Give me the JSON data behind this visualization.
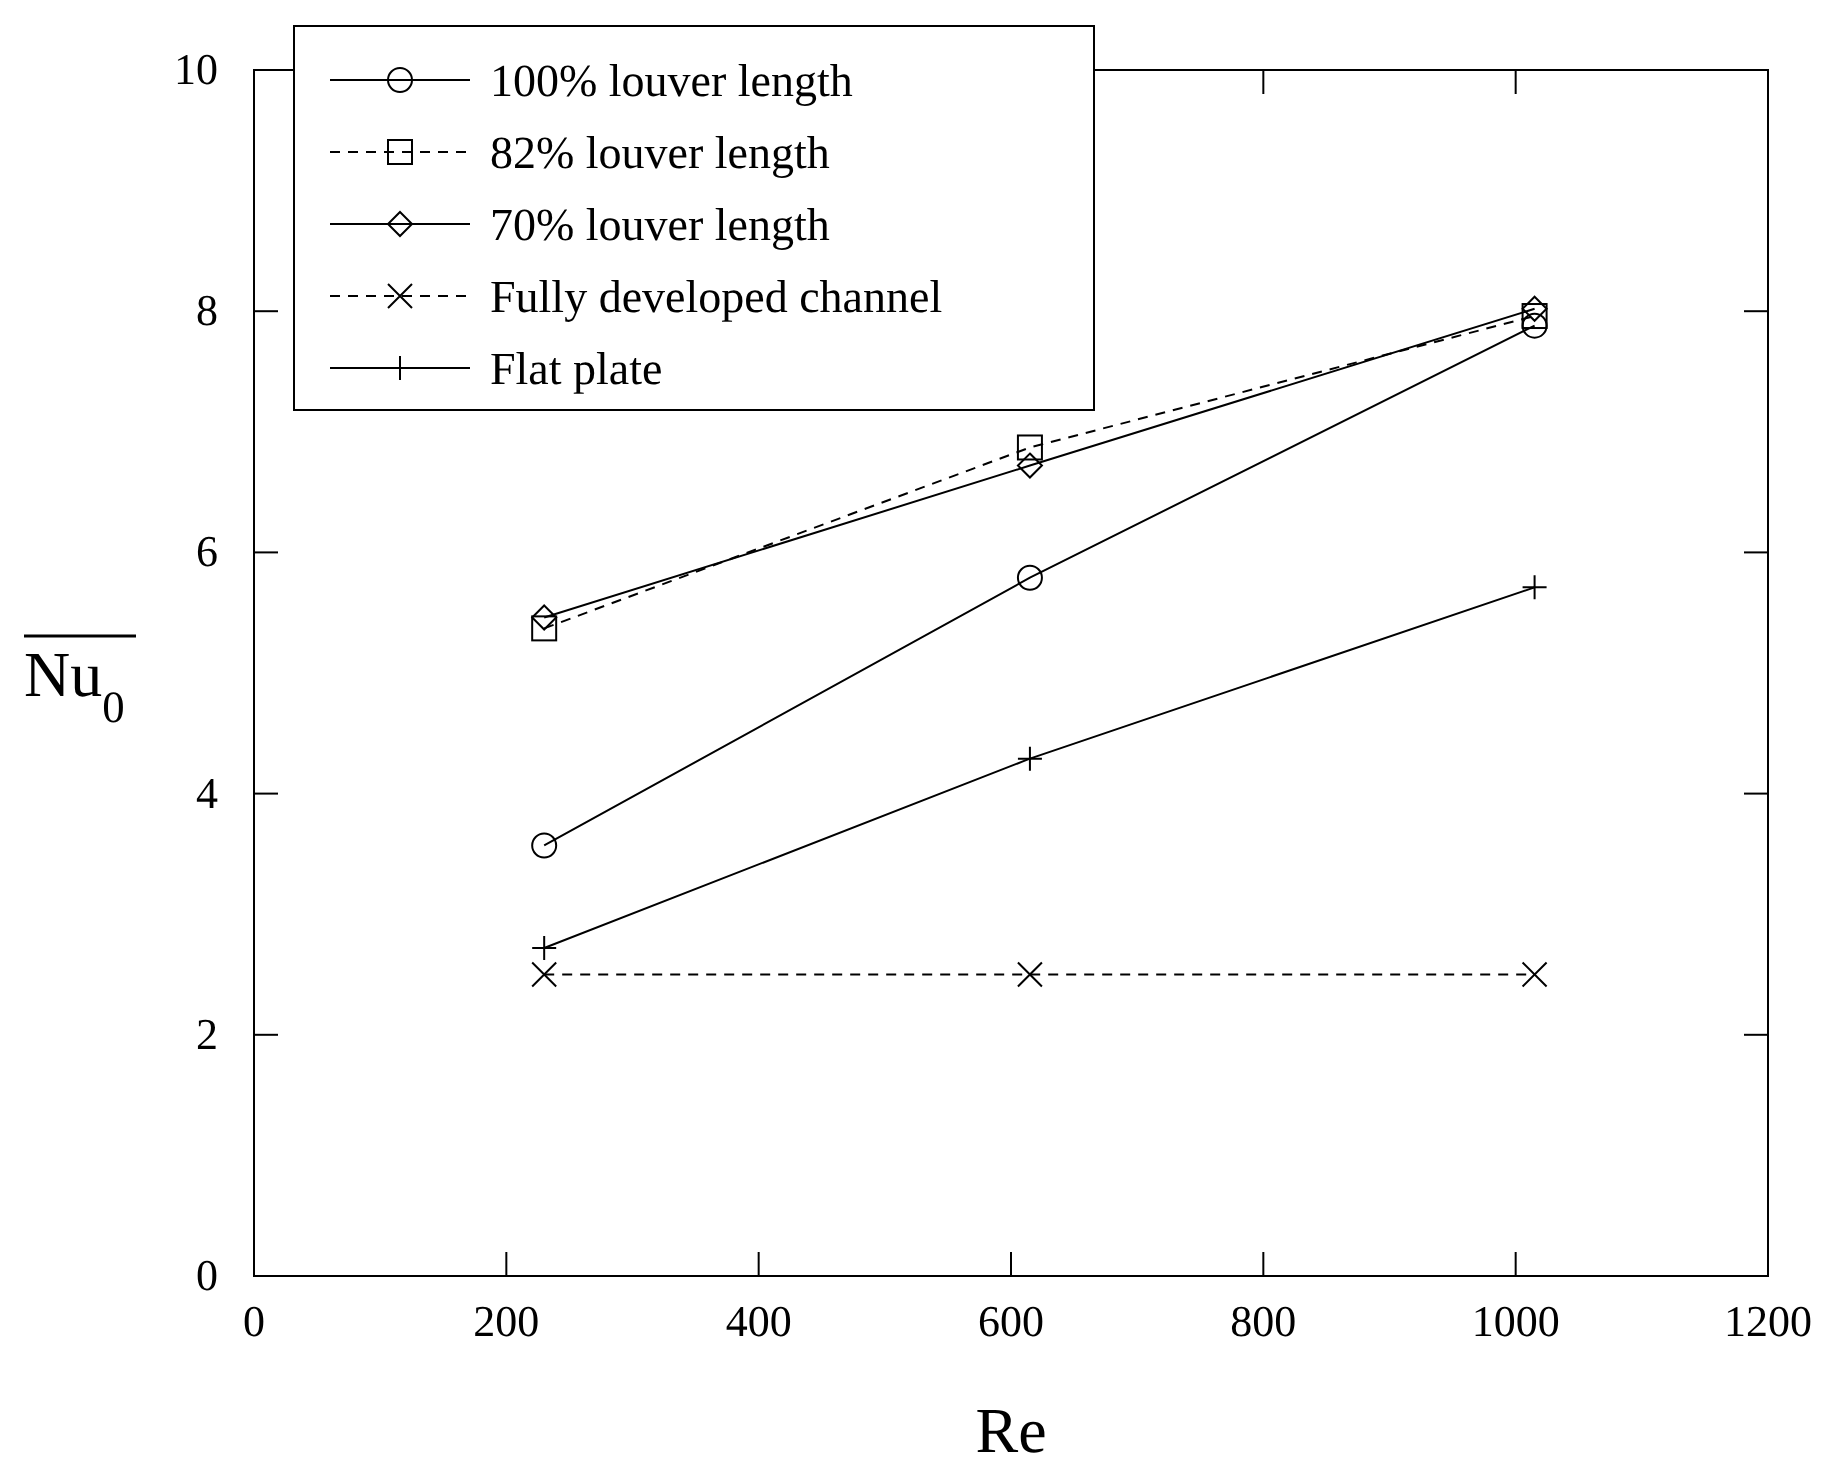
{
  "chart_data": {
    "type": "line",
    "xlabel": "Re",
    "ylabel": "Nu$_{0}$",
    "x": [
      230,
      615,
      1015
    ],
    "xlim": [
      0,
      1200
    ],
    "xticks": [
      0,
      200,
      400,
      600,
      800,
      1000,
      1200
    ],
    "ylim": [
      0,
      10
    ],
    "yticks": [
      0,
      2,
      4,
      6,
      8,
      10
    ],
    "grid": false,
    "legend": "top left",
    "series": [
      {
        "name": "100% louver length",
        "color": "#000000",
        "values": [
          3.57,
          5.79,
          7.88
        ],
        "marker": "circle",
        "line_style": "solid"
      },
      {
        "name": "82% louver length",
        "color": "#000000",
        "values": [
          5.37,
          6.87,
          7.96
        ],
        "marker": "square",
        "line_style": "dashed"
      },
      {
        "name": "70% louver length",
        "color": "#000000",
        "values": [
          5.46,
          6.72,
          8.02
        ],
        "marker": "diamond",
        "line_style": "solid"
      },
      {
        "name": "Fully developed channel",
        "color": "#000000",
        "values": [
          2.5,
          2.5,
          2.5
        ],
        "marker": "cross",
        "line_style": "dashed"
      },
      {
        "name": "Flat plate",
        "color": "#000000",
        "values": [
          2.72,
          4.29,
          5.71
        ],
        "marker": "plus",
        "line_style": "solid"
      }
    ]
  }
}
